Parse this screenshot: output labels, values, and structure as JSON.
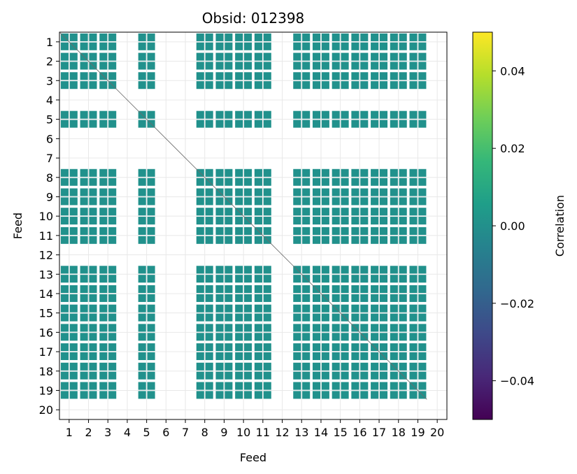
{
  "chart_data": {
    "type": "heatmap",
    "title": "Obsid: 012398",
    "xlabel": "Feed",
    "ylabel": "Feed",
    "x_ticks": [
      "1",
      "2",
      "3",
      "4",
      "5",
      "6",
      "7",
      "8",
      "9",
      "10",
      "11",
      "12",
      "13",
      "14",
      "15",
      "16",
      "17",
      "18",
      "19",
      "20"
    ],
    "y_ticks": [
      "1",
      "2",
      "3",
      "4",
      "5",
      "6",
      "7",
      "8",
      "9",
      "10",
      "11",
      "12",
      "13",
      "14",
      "15",
      "16",
      "17",
      "18",
      "19",
      "20"
    ],
    "feeds": [
      1,
      2,
      3,
      4,
      5,
      6,
      7,
      8,
      9,
      10,
      11,
      12,
      13,
      14,
      15,
      16,
      17,
      18,
      19,
      20
    ],
    "active_feeds": [
      1,
      2,
      3,
      5,
      8,
      9,
      10,
      11,
      13,
      14,
      15,
      16,
      17,
      18,
      19
    ],
    "blank_feeds": [
      4,
      6,
      7,
      12,
      20
    ],
    "cell_value": 0.0,
    "cell_color": "#21918c",
    "colorbar": {
      "label": "Correlation",
      "vmin": -0.05,
      "vmax": 0.05,
      "ticks": [
        -0.04,
        -0.02,
        0.0,
        0.02,
        0.04
      ],
      "tick_labels": [
        "−0.04",
        "−0.02",
        "0.00",
        "0.02",
        "0.04"
      ],
      "colormap": "viridis",
      "colors": [
        "#440154",
        "#482878",
        "#3e4989",
        "#31688e",
        "#26828e",
        "#1f9e89",
        "#35b779",
        "#6ece58",
        "#b5de2b",
        "#fde725"
      ]
    }
  }
}
